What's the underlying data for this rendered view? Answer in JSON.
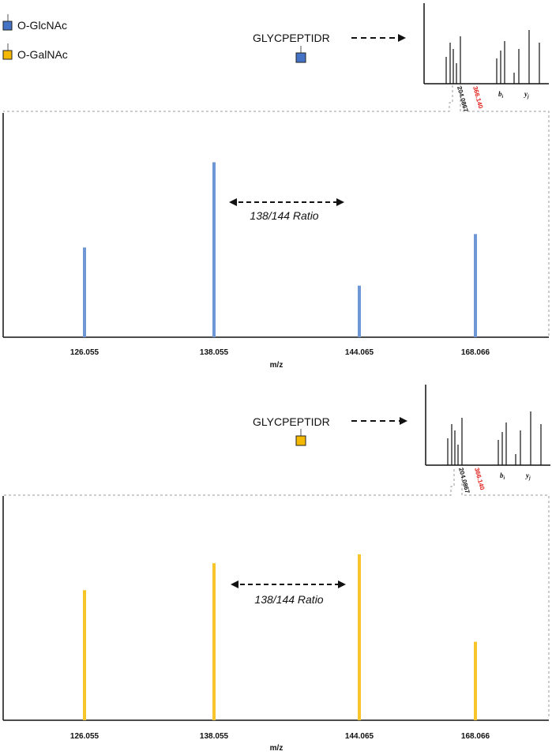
{
  "legend": [
    {
      "label": "O-GlcNAc",
      "color": "#4472C4"
    },
    {
      "label": "O-GalNAc",
      "color": "#F5B800"
    }
  ],
  "peptide": "GLYCPEPTIDR",
  "ratio_label": "138/144 Ratio",
  "inset": {
    "label_b": "b",
    "label_b_sub": "i",
    "label_y": "y",
    "label_y_sub": "j",
    "peak1": "204.0867",
    "peak2": "366.140",
    "peak2_color": "#E0201B"
  },
  "chart_data": [
    {
      "type": "bar",
      "title": "",
      "glycan": "O-GlcNAc",
      "color": "#6F97D6",
      "categories": [
        "126.055",
        "138.055",
        "144.065",
        "168.066"
      ],
      "values": [
        0.4,
        0.78,
        0.23,
        0.46
      ],
      "xlabel": "m/z",
      "ylabel": "",
      "ylim": [
        0,
        1
      ]
    },
    {
      "type": "bar",
      "title": "",
      "glycan": "O-GalNAc",
      "color": "#F7C52A",
      "categories": [
        "126.055",
        "138.055",
        "144.065",
        "168.066"
      ],
      "values": [
        0.58,
        0.7,
        0.74,
        0.35
      ],
      "xlabel": "m/z",
      "ylabel": "",
      "ylim": [
        0,
        1
      ]
    }
  ]
}
